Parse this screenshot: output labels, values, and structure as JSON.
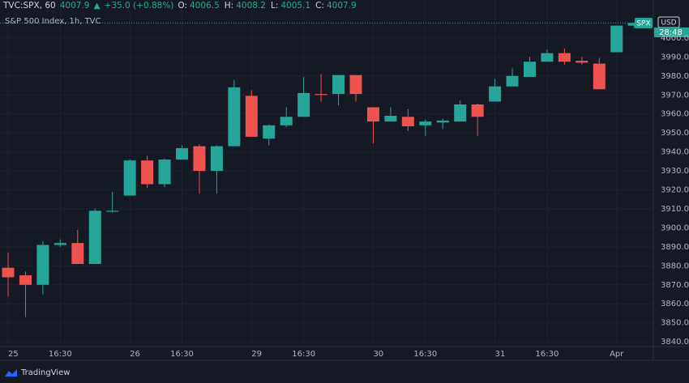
{
  "header": {
    "symbol": "TVC:SPX, 60",
    "last": 4007.9,
    "arrow": "▲",
    "change": "+35.0 (+0.88%)",
    "ohlc_labels": [
      "O:",
      "H:",
      "L:",
      "C:"
    ],
    "ohlc_values": [
      4006.5,
      4008.2,
      4005.1,
      4007.9
    ],
    "subtitle": "S&P 500 Index, 1h, TVC"
  },
  "price_tag": {
    "symbol": "SPX",
    "currency": "USD",
    "countdown": "28:48"
  },
  "footer": {
    "brand": "TradingView"
  },
  "chart_data": {
    "type": "candlestick",
    "categories": [
      "25",
      null,
      null,
      "16:30",
      null,
      null,
      null,
      "26",
      null,
      null,
      "16:30",
      null,
      null,
      null,
      "29",
      null,
      null,
      "16:30",
      null,
      null,
      null,
      "30",
      null,
      null,
      "16:30",
      null,
      null,
      null,
      "31",
      null,
      null,
      "16:30",
      null,
      null,
      null,
      "Apr",
      null
    ],
    "open": [
      3879,
      3875,
      3870,
      3891,
      3892,
      3881,
      3908.5,
      3917,
      3935.5,
      3923,
      3936,
      3943,
      3930,
      3943,
      3969.5,
      3947,
      3954,
      3958.5,
      3970.5,
      3970.5,
      3980.5,
      3963.5,
      3956,
      3958.5,
      3954,
      3955.5,
      3956,
      3965,
      3966.5,
      3974.5,
      3979.5,
      3987.5,
      3992,
      3988,
      3986.5,
      3992.5,
      4006.5
    ],
    "high": [
      3887,
      3877,
      3893,
      3894,
      3899,
      3910,
      3919,
      3936,
      3938,
      3936.5,
      3943.5,
      3944,
      3943.5,
      3978,
      3972.5,
      3954.5,
      3963.5,
      3979.5,
      3981,
      3980.5,
      3980.5,
      3963.5,
      3963.5,
      3962.5,
      3957,
      3957.5,
      3967,
      3965.5,
      3978.5,
      3984,
      3990,
      3994,
      3994.5,
      3990,
      3989.5,
      4006.5,
      4008.2
    ],
    "low": [
      3864,
      3853,
      3865,
      3890,
      3881,
      3881,
      3908,
      3917,
      3921,
      3921.5,
      3936,
      3918,
      3918,
      3943,
      3948,
      3943.5,
      3953,
      3958.5,
      3966.5,
      3964.5,
      3966.5,
      3944.5,
      3956,
      3951,
      3948.5,
      3952,
      3956,
      3948.5,
      3966.5,
      3974.5,
      3979.5,
      3987.5,
      3986,
      3986,
      3973,
      3992.5,
      4005.1
    ],
    "close": [
      3874,
      3870,
      3891,
      3892,
      3881,
      3909,
      3909,
      3935.5,
      3923,
      3936,
      3942,
      3930,
      3943,
      3974,
      3948,
      3954,
      3958.5,
      3971,
      3970,
      3980.5,
      3970.5,
      3956,
      3959,
      3953.5,
      3956,
      3956.5,
      3965,
      3958.5,
      3974.5,
      3980,
      3987.5,
      3992,
      3987.5,
      3987,
      3973,
      4006.5,
      4007.9
    ],
    "up_color": "#26a69a",
    "down_color": "#ef5350",
    "ylim": [
      3837.5,
      4020
    ],
    "yticks": [
      {
        "value": 3840,
        "label": "3840.0"
      },
      {
        "value": 3850,
        "label": "3850.0"
      },
      {
        "value": 3860,
        "label": "3860.0"
      },
      {
        "value": 3870,
        "label": "3870.0"
      },
      {
        "value": 3880,
        "label": "3880.0"
      },
      {
        "value": 3890,
        "label": "3890.0"
      },
      {
        "value": 3900,
        "label": "3900.0"
      },
      {
        "value": 3910,
        "label": "3910.0"
      },
      {
        "value": 3920,
        "label": "3920.0"
      },
      {
        "value": 3930,
        "label": "3930.0"
      },
      {
        "value": 3940,
        "label": "3940.0"
      },
      {
        "value": 3950,
        "label": "3950.0"
      },
      {
        "value": 3960,
        "label": "3960.0"
      },
      {
        "value": 3970,
        "label": "3970.0"
      },
      {
        "value": 3980,
        "label": "3980.0"
      },
      {
        "value": 3990,
        "label": "3990.0"
      },
      {
        "value": 4000,
        "label": "4000.0"
      }
    ],
    "grid": true
  }
}
